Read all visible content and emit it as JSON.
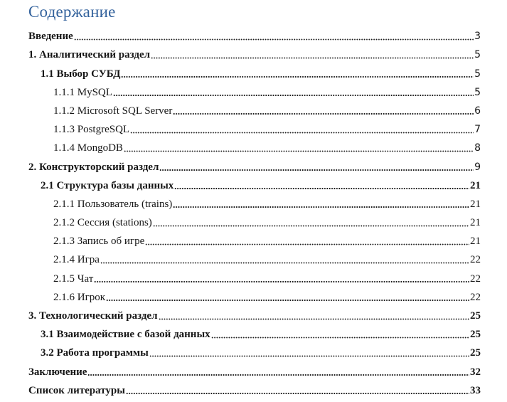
{
  "page": {
    "title": "Содержание",
    "title_color": "#33629c",
    "text_color": "#161616",
    "background_color": "#ffffff"
  },
  "toc": {
    "rows": [
      {
        "label": "Введение",
        "page": "3",
        "level": 0,
        "bold": true,
        "num_font": "sans"
      },
      {
        "label": "1. Аналитический раздел",
        "page": "5",
        "level": 0,
        "bold": true,
        "num_font": "sans"
      },
      {
        "label": "1.1 Выбор СУБД",
        "page": "5",
        "level": 1,
        "bold": true,
        "num_font": "sans"
      },
      {
        "label": "1.1.1 MySQL",
        "page": "5",
        "level": 2,
        "bold": false,
        "num_font": "sans"
      },
      {
        "label": "1.1.2 Microsoft SQL Server",
        "page": "6",
        "level": 2,
        "bold": false,
        "num_font": "sans"
      },
      {
        "label": "1.1.3 PostgreSQL",
        "page": "7",
        "level": 2,
        "bold": false,
        "num_font": "sans"
      },
      {
        "label": "1.1.4 MongoDB",
        "page": "8",
        "level": 2,
        "bold": false,
        "num_font": "sans"
      },
      {
        "label": "2. Конструкторский раздел",
        "page": "9",
        "level": 0,
        "bold": true,
        "num_font": "sans"
      },
      {
        "label": "2.1 Структура базы данных",
        "page": "21",
        "level": 1,
        "bold": true,
        "num_font": "serif"
      },
      {
        "label": "2.1.1 Пользователь (trains)",
        "page": "21",
        "level": 2,
        "bold": false,
        "num_font": "serif"
      },
      {
        "label": "2.1.2 Сессия (stations)",
        "page": "21",
        "level": 2,
        "bold": false,
        "num_font": "serif"
      },
      {
        "label": "2.1.3 Запись об игре",
        "page": "21",
        "level": 2,
        "bold": false,
        "num_font": "serif"
      },
      {
        "label": "2.1.4 Игра",
        "page": "22",
        "level": 2,
        "bold": false,
        "num_font": "serif"
      },
      {
        "label": "2.1.5 Чат",
        "page": "22",
        "level": 2,
        "bold": false,
        "num_font": "serif"
      },
      {
        "label": "2.1.6 Игрок",
        "page": "22",
        "level": 2,
        "bold": false,
        "num_font": "serif"
      },
      {
        "label": "3. Технологический раздел",
        "page": "25",
        "level": 0,
        "bold": true,
        "num_font": "serif"
      },
      {
        "label": "3.1 Взаимодействие с базой данных",
        "page": "25",
        "level": 1,
        "bold": true,
        "num_font": "serif"
      },
      {
        "label": "3.2 Работа программы",
        "page": "25",
        "level": 1,
        "bold": true,
        "num_font": "serif"
      },
      {
        "label": "Заключение",
        "page": "32",
        "level": 0,
        "bold": true,
        "num_font": "serif"
      },
      {
        "label": "Список литературы",
        "page": "33",
        "level": 0,
        "bold": true,
        "num_font": "serif"
      }
    ]
  }
}
